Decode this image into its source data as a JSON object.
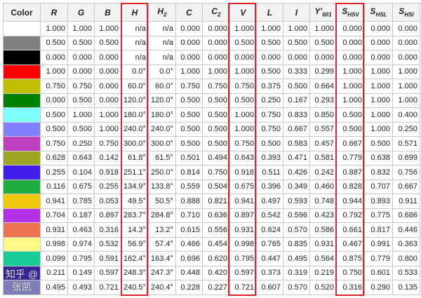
{
  "headers": [
    {
      "main": "Color",
      "sub": ""
    },
    {
      "main": "R",
      "sub": ""
    },
    {
      "main": "G",
      "sub": ""
    },
    {
      "main": "B",
      "sub": ""
    },
    {
      "main": "H",
      "sub": ""
    },
    {
      "main": "H",
      "sub": "2"
    },
    {
      "main": "C",
      "sub": ""
    },
    {
      "main": "C",
      "sub": "2"
    },
    {
      "main": "V",
      "sub": ""
    },
    {
      "main": "L",
      "sub": ""
    },
    {
      "main": "I",
      "sub": ""
    },
    {
      "main": "Y'",
      "sub": "601"
    },
    {
      "main": "S",
      "sub": "HSV"
    },
    {
      "main": "S",
      "sub": "HSL"
    },
    {
      "main": "S",
      "sub": "HSI"
    }
  ],
  "highlighted_columns": [
    "H",
    "V",
    "S_HSV"
  ],
  "highlight_color": "#d9232e",
  "rows": [
    {
      "color": "#FFFFFF",
      "values": [
        "1.000",
        "1.000",
        "1.000",
        "n/a",
        "n/a",
        "0.000",
        "0.000",
        "1.000",
        "1.000",
        "1.000",
        "1.000",
        "0.000",
        "0.000",
        "0.000"
      ]
    },
    {
      "color": "#808080",
      "values": [
        "0.500",
        "0.500",
        "0.500",
        "n/a",
        "n/a",
        "0.000",
        "0.000",
        "0.500",
        "0.500",
        "0.500",
        "0.500",
        "0.000",
        "0.000",
        "0.000"
      ]
    },
    {
      "color": "#000000",
      "values": [
        "0.000",
        "0.000",
        "0.000",
        "n/a",
        "n/a",
        "0.000",
        "0.000",
        "0.000",
        "0.000",
        "0.000",
        "0.000",
        "0.000",
        "0.000",
        "0.000"
      ]
    },
    {
      "color": "#FF0000",
      "values": [
        "1.000",
        "0.000",
        "0.000",
        "0.0°",
        "0.0°",
        "1.000",
        "1.000",
        "1.000",
        "0.500",
        "0.333",
        "0.299",
        "1.000",
        "1.000",
        "1.000"
      ]
    },
    {
      "color": "#BFBF00",
      "values": [
        "0.750",
        "0.750",
        "0.000",
        "60.0°",
        "60.0°",
        "0.750",
        "0.750",
        "0.750",
        "0.375",
        "0.500",
        "0.664",
        "1.000",
        "1.000",
        "1.000"
      ]
    },
    {
      "color": "#008000",
      "values": [
        "0.000",
        "0.500",
        "0.000",
        "120.0°",
        "120.0°",
        "0.500",
        "0.500",
        "0.500",
        "0.250",
        "0.167",
        "0.293",
        "1.000",
        "1.000",
        "1.000"
      ]
    },
    {
      "color": "#80FFFF",
      "values": [
        "0.500",
        "1.000",
        "1.000",
        "180.0°",
        "180.0°",
        "0.500",
        "0.500",
        "1.000",
        "0.750",
        "0.833",
        "0.850",
        "0.500",
        "1.000",
        "0.400"
      ]
    },
    {
      "color": "#8080FF",
      "values": [
        "0.500",
        "0.500",
        "1.000",
        "240.0°",
        "240.0°",
        "0.500",
        "0.500",
        "1.000",
        "0.750",
        "0.667",
        "0.557",
        "0.500",
        "1.000",
        "0.250"
      ]
    },
    {
      "color": "#BF40BF",
      "values": [
        "0.750",
        "0.250",
        "0.750",
        "300.0°",
        "300.0°",
        "0.500",
        "0.500",
        "0.750",
        "0.500",
        "0.583",
        "0.457",
        "0.667",
        "0.500",
        "0.571"
      ]
    },
    {
      "color": "#A0A424",
      "values": [
        "0.628",
        "0.643",
        "0.142",
        "61.8°",
        "61.5°",
        "0.501",
        "0.494",
        "0.643",
        "0.393",
        "0.471",
        "0.581",
        "0.779",
        "0.638",
        "0.699"
      ]
    },
    {
      "color": "#411BEA",
      "values": [
        "0.255",
        "0.104",
        "0.918",
        "251.1°",
        "250.0°",
        "0.814",
        "0.750",
        "0.918",
        "0.511",
        "0.426",
        "0.242",
        "0.887",
        "0.832",
        "0.756"
      ]
    },
    {
      "color": "#1EAC41",
      "values": [
        "0.116",
        "0.675",
        "0.255",
        "134.9°",
        "133.8°",
        "0.559",
        "0.504",
        "0.675",
        "0.396",
        "0.349",
        "0.460",
        "0.828",
        "0.707",
        "0.667"
      ]
    },
    {
      "color": "#F0C80E",
      "values": [
        "0.941",
        "0.785",
        "0.053",
        "49.5°",
        "50.5°",
        "0.888",
        "0.821",
        "0.941",
        "0.497",
        "0.593",
        "0.748",
        "0.944",
        "0.893",
        "0.911"
      ]
    },
    {
      "color": "#B430E5",
      "values": [
        "0.704",
        "0.187",
        "0.897",
        "283.7°",
        "284.8°",
        "0.710",
        "0.636",
        "0.897",
        "0.542",
        "0.596",
        "0.423",
        "0.792",
        "0.775",
        "0.686"
      ]
    },
    {
      "color": "#ED7651",
      "values": [
        "0.931",
        "0.463",
        "0.316",
        "14.3°",
        "13.2°",
        "0.615",
        "0.556",
        "0.931",
        "0.624",
        "0.570",
        "0.586",
        "0.661",
        "0.817",
        "0.446"
      ]
    },
    {
      "color": "#FEF888",
      "values": [
        "0.998",
        "0.974",
        "0.532",
        "56.9°",
        "57.4°",
        "0.466",
        "0.454",
        "0.998",
        "0.765",
        "0.835",
        "0.931",
        "0.467",
        "0.991",
        "0.363"
      ]
    },
    {
      "color": "#19CB97",
      "values": [
        "0.099",
        "0.795",
        "0.591",
        "162.4°",
        "163.4°",
        "0.696",
        "0.620",
        "0.795",
        "0.447",
        "0.495",
        "0.564",
        "0.875",
        "0.779",
        "0.800"
      ]
    },
    {
      "color": "#362698",
      "values": [
        "0.211",
        "0.149",
        "0.597",
        "248.3°",
        "247.3°",
        "0.448",
        "0.420",
        "0.597",
        "0.373",
        "0.319",
        "0.219",
        "0.750",
        "0.601",
        "0.533"
      ]
    },
    {
      "color": "#7E7EB8",
      "values": [
        "0.495",
        "0.493",
        "0.721",
        "240.5°",
        "240.4°",
        "0.228",
        "0.227",
        "0.721",
        "0.607",
        "0.570",
        "0.520",
        "0.316",
        "0.290",
        "0.135"
      ]
    }
  ],
  "watermark": "知乎 @张凯"
}
